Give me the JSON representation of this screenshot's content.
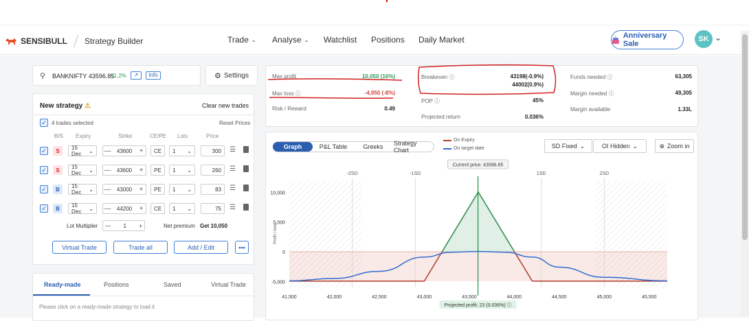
{
  "brand": {
    "name": "SENSIBULL",
    "section": "Strategy Builder"
  },
  "nav": {
    "trade": "Trade",
    "analyse": "Analyse",
    "watchlist": "Watchlist",
    "positions": "Positions",
    "daily_market": "Daily Market",
    "anniversary": "Anniversary Sale",
    "avatar": "SK"
  },
  "symbol": {
    "name": "BANKNIFTY 43596.85",
    "change": "+1.2%",
    "info": "Info",
    "settings": "Settings"
  },
  "strategy": {
    "title": "New strategy",
    "clear": "Clear new trades",
    "selected": "4 trades selected",
    "reset": "Reset Prices",
    "headers": [
      "B/S",
      "Expiry",
      "Strike",
      "CE/PE",
      "Lots",
      "Price"
    ],
    "rows": [
      {
        "side": "S",
        "expiry": "15 Dec",
        "strike": "43600",
        "type": "CE",
        "lots": "1",
        "price": "300"
      },
      {
        "side": "S",
        "expiry": "15 Dec",
        "strike": "43600",
        "type": "PE",
        "lots": "1",
        "price": "260"
      },
      {
        "side": "B",
        "expiry": "15 Dec",
        "strike": "43000",
        "type": "PE",
        "lots": "1",
        "price": "83"
      },
      {
        "side": "B",
        "expiry": "15 Dec",
        "strike": "44200",
        "type": "CE",
        "lots": "1",
        "price": "75"
      }
    ],
    "lot_multiplier_label": "Lot Multiplier",
    "lot_multiplier": "1",
    "net_premium_label": "Net premium",
    "net_premium": "Get 10,050",
    "virtual_trade": "Virtual Trade",
    "trade_all": "Trade all",
    "add_edit": "Add / Edit",
    "more": "•••"
  },
  "bottom_tabs": {
    "ready": "Ready-made",
    "positions": "Positions",
    "saved": "Saved",
    "virtual": "Virtual Trade",
    "hint": "Please click on a ready-made strategy to load it"
  },
  "stats": {
    "max_profit_label": "Max profit",
    "max_profit": "10,050 (16%)",
    "max_loss_label": "Max loss",
    "max_loss": "-4,950 (-8%)",
    "rr_label": "Risk / Reward",
    "rr": "0.49",
    "breakeven_label": "Breakeven",
    "breakeven_1": "43198(-0.9%)",
    "breakeven_2": "44002(0.9%)",
    "pop_label": "POP",
    "pop": "45%",
    "proj_label": "Projected return",
    "proj": "0.036%",
    "funds_label": "Funds needed",
    "funds": "63,305",
    "margin_label": "Margin needed",
    "margin": "49,305",
    "margin_avail_label": "Margin available",
    "margin_avail": "1.33L"
  },
  "chart_tabs": {
    "graph": "Graph",
    "pl": "P&L Table",
    "greeks": "Greeks",
    "strategy_chart": "Strategy Chart",
    "legend_expiry": "On Expiry",
    "legend_target": "On target date",
    "sd": "SD Fixed",
    "oi": "OI Hidden",
    "zoom": "Zoom in"
  },
  "chart_data": {
    "type": "line",
    "current_price_label": "Current price: 43596.85",
    "projected_label": "Projected profit: 23 (0.036%)",
    "ylabel": "Profit / loss",
    "x_ticks": [
      "41,500",
      "42,000",
      "42,500",
      "43,000",
      "43,500",
      "44,000",
      "44,500",
      "45,000",
      "45,500"
    ],
    "y_ticks": [
      "10,000",
      "5,000",
      "0",
      "-5,000"
    ],
    "sd_ticks": [
      "-2SD",
      "-1SD",
      "1SD",
      "2SD"
    ],
    "xlim": [
      41500,
      45700
    ],
    "ylim": [
      -6000,
      12000
    ],
    "series": [
      {
        "name": "On Expiry",
        "color": "#b23b2a",
        "x": [
          41500,
          43000,
          43600,
          44200,
          45700
        ],
        "y": [
          -4950,
          -4950,
          10050,
          -4950,
          -4950
        ]
      },
      {
        "name": "On target date",
        "color": "#2f6ccf",
        "x": [
          41500,
          42000,
          42500,
          43000,
          43300,
          43600,
          43900,
          44200,
          44500,
          45000,
          45700
        ],
        "y": [
          -4900,
          -4500,
          -3300,
          -900,
          -80,
          50,
          -80,
          -900,
          -2600,
          -4300,
          -4900
        ]
      }
    ],
    "colors": {
      "profit": "#2e9a5a",
      "loss": "#d0463a",
      "current": "#1f8f4a"
    }
  }
}
